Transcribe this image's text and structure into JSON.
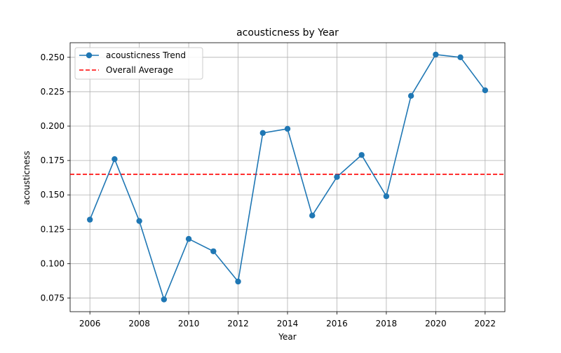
{
  "chart_data": {
    "type": "line",
    "title": "acousticness by Year",
    "xlabel": "Year",
    "ylabel": "acousticness",
    "xlim": [
      2005.2,
      2022.8
    ],
    "ylim": [
      0.0651,
      0.2606
    ],
    "xticks": [
      2006,
      2008,
      2010,
      2012,
      2014,
      2016,
      2018,
      2020,
      2022
    ],
    "xtick_labels": [
      "2006",
      "2008",
      "2010",
      "2012",
      "2014",
      "2016",
      "2018",
      "2020",
      "2022"
    ],
    "yticks": [
      0.075,
      0.1,
      0.125,
      0.15,
      0.175,
      0.2,
      0.225,
      0.25
    ],
    "ytick_labels": [
      "0.075",
      "0.100",
      "0.125",
      "0.150",
      "0.175",
      "0.200",
      "0.225",
      "0.250"
    ],
    "grid": true,
    "legend_position": "upper-left",
    "series": [
      {
        "name": "acousticness Trend",
        "color": "#1f77b4",
        "x": [
          2006,
          2007,
          2008,
          2009,
          2010,
          2011,
          2012,
          2013,
          2014,
          2015,
          2016,
          2017,
          2018,
          2019,
          2020,
          2021,
          2022
        ],
        "values": [
          0.132,
          0.176,
          0.131,
          0.074,
          0.118,
          0.109,
          0.087,
          0.195,
          0.198,
          0.135,
          0.163,
          0.179,
          0.149,
          0.222,
          0.252,
          0.25,
          0.226
        ]
      }
    ],
    "reference_lines": [
      {
        "name": "Overall Average",
        "value": 0.165,
        "color": "#ff0000",
        "style": "dashed"
      }
    ]
  }
}
